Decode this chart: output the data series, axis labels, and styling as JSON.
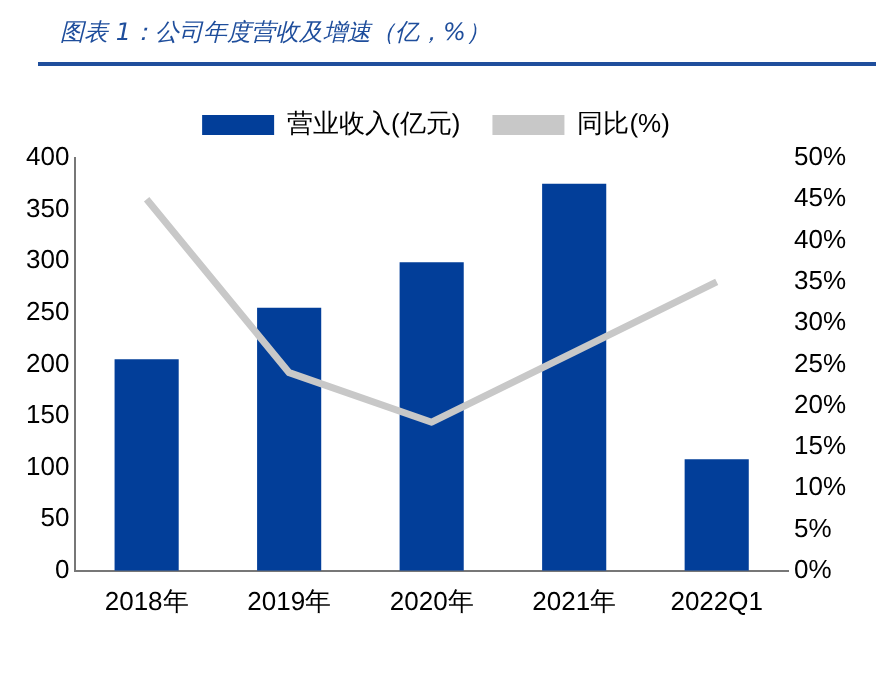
{
  "chart_data": {
    "type": "bar",
    "title": "图表 1：公司年度营收及增速（亿，%）",
    "categories": [
      "2018年",
      "2019年",
      "2020年",
      "2021年",
      "2022Q1"
    ],
    "series": [
      {
        "name": "营业收入(亿元)",
        "color": "#023e99",
        "values": [
          205,
          255,
          299,
          375,
          108
        ]
      },
      {
        "name": "同比(%)",
        "type": "line",
        "axis": "y2",
        "color": "#c8c8c8",
        "values": [
          45,
          24,
          18,
          26.5,
          35
        ]
      }
    ],
    "ylim": [
      0,
      400
    ],
    "yticks": [
      0,
      50,
      100,
      150,
      200,
      250,
      300,
      350,
      400
    ],
    "y2lim": [
      0,
      50
    ],
    "y2ticks": [
      {
        "value": 0,
        "label": "0%"
      },
      {
        "value": 5,
        "label": "5%"
      },
      {
        "value": 10,
        "label": "10%"
      },
      {
        "value": 15,
        "label": "15%"
      },
      {
        "value": 20,
        "label": "20%"
      },
      {
        "value": 25,
        "label": "25%"
      },
      {
        "value": 30,
        "label": "30%"
      },
      {
        "value": 35,
        "label": "35%"
      },
      {
        "value": 40,
        "label": "40%"
      },
      {
        "value": 45,
        "label": "45%"
      },
      {
        "value": 50,
        "label": "50%"
      }
    ],
    "grid": false,
    "legend": "top",
    "marker": "none"
  }
}
